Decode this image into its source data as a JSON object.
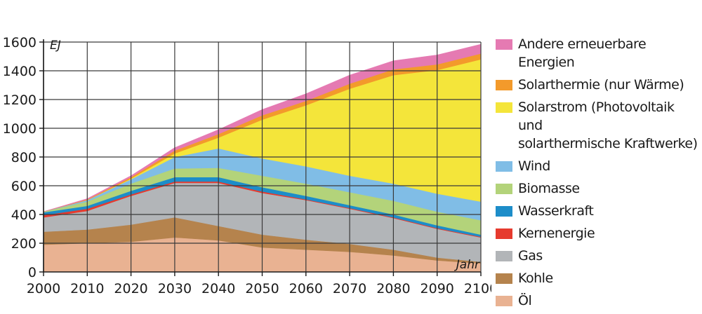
{
  "chart_data": {
    "type": "area",
    "stacked": true,
    "x": [
      2000,
      2010,
      2020,
      2030,
      2040,
      2050,
      2060,
      2070,
      2080,
      2090,
      2100
    ],
    "xlim": [
      2000,
      2100
    ],
    "ylim": [
      0,
      1600
    ],
    "yticks": [
      0,
      200,
      400,
      600,
      800,
      1000,
      1200,
      1400,
      1600
    ],
    "xticks": [
      2000,
      2010,
      2020,
      2030,
      2040,
      2050,
      2060,
      2070,
      2080,
      2090,
      2100
    ],
    "ylabel": "EJ",
    "xlabel": "Jahr",
    "grid": true,
    "legend_position": "right",
    "series": [
      {
        "name": "Öl",
        "color": "#e9b292",
        "values": [
          190,
          200,
          210,
          240,
          220,
          170,
          155,
          140,
          115,
          80,
          60
        ]
      },
      {
        "name": "Kohle",
        "color": "#b5834d",
        "values": [
          90,
          95,
          120,
          140,
          100,
          90,
          70,
          55,
          40,
          20,
          10
        ]
      },
      {
        "name": "Gas",
        "color": "#b2b5b8",
        "values": [
          100,
          130,
          200,
          240,
          300,
          290,
          275,
          245,
          220,
          200,
          170
        ]
      },
      {
        "name": "Kernenergie",
        "color": "#e63a2e",
        "values": [
          15,
          15,
          10,
          10,
          10,
          10,
          5,
          5,
          5,
          5,
          5
        ]
      },
      {
        "name": "Wasserkraft",
        "color": "#1d8dc9",
        "values": [
          20,
          20,
          25,
          30,
          30,
          30,
          25,
          20,
          20,
          20,
          15
        ]
      },
      {
        "name": "Biomasse",
        "color": "#b3d37a",
        "values": [
          5,
          30,
          50,
          60,
          65,
          80,
          85,
          90,
          95,
          95,
          100
        ]
      },
      {
        "name": "Wind",
        "color": "#80bde6",
        "values": [
          0,
          10,
          30,
          80,
          135,
          120,
          120,
          115,
          120,
          125,
          130
        ]
      },
      {
        "name": "Solarstrom (Photovoltaik und\nsolarthermische Kraftwerke)",
        "color": "#f4e53a",
        "values": [
          0,
          0,
          5,
          25,
          75,
          270,
          425,
          605,
          755,
          860,
          990
        ]
      },
      {
        "name": "Solarthermie (nur Wärme)",
        "color": "#f39a2b",
        "values": [
          0,
          5,
          10,
          20,
          25,
          30,
          30,
          35,
          40,
          40,
          40
        ]
      },
      {
        "name": "Andere erneuerbare Energien",
        "color": "#e57ab2",
        "values": [
          0,
          5,
          10,
          20,
          30,
          40,
          50,
          60,
          60,
          65,
          65
        ]
      }
    ]
  }
}
